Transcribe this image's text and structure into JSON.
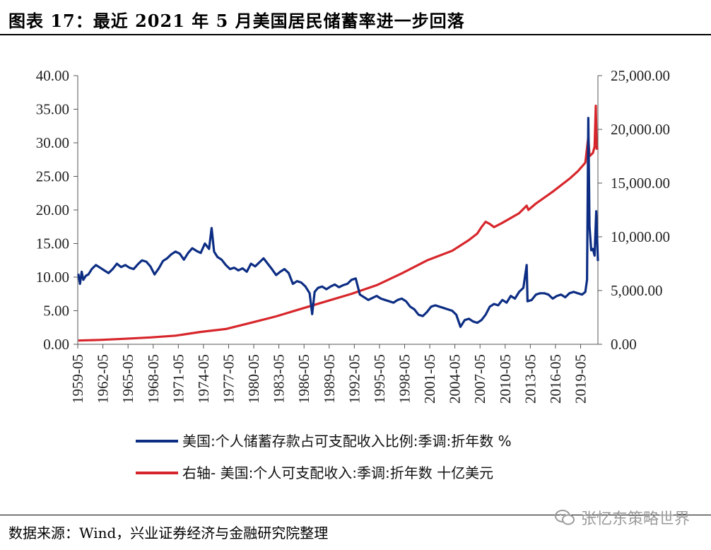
{
  "title": "图表 17：最近 2021 年 5 月美国居民储蓄率进一步回落",
  "source": "数据来源：Wind，兴业证券经济与金融研究院整理",
  "watermark": "张忆东策略世界",
  "chart_data": {
    "type": "line",
    "title": "图表 17：最近 2021 年 5 月美国居民储蓄率进一步回落",
    "x_tick_labels": [
      "1959-05",
      "1962-05",
      "1965-05",
      "1968-05",
      "1971-05",
      "1974-05",
      "1977-05",
      "1980-05",
      "1983-05",
      "1986-05",
      "1989-05",
      "1992-05",
      "1995-05",
      "1998-05",
      "2001-05",
      "2004-05",
      "2007-05",
      "2010-05",
      "2013-05",
      "2016-05",
      "2019-05"
    ],
    "x_range": [
      1959.33,
      2021.4
    ],
    "left_axis": {
      "ylim": [
        0,
        40
      ],
      "ticks": [
        "0.00",
        "5.00",
        "10.00",
        "15.00",
        "20.00",
        "25.00",
        "30.00",
        "35.00",
        "40.00"
      ]
    },
    "right_axis": {
      "ylim": [
        0,
        25000
      ],
      "ticks": [
        "0.00",
        "5,000.00",
        "10,000.00",
        "15,000.00",
        "20,000.00",
        "25,000.00"
      ]
    },
    "series": [
      {
        "name": "美国:个人储蓄存款占可支配收入比例:季调:折年数 %",
        "axis": "left",
        "color": "#0c2d83",
        "x": [
          1959.4,
          1959.6,
          1959.8,
          1960.0,
          1960.3,
          1960.6,
          1961.0,
          1961.5,
          1962.0,
          1962.5,
          1963.0,
          1963.5,
          1964.0,
          1964.5,
          1965.0,
          1965.5,
          1966.0,
          1966.5,
          1967.0,
          1967.5,
          1968.0,
          1968.5,
          1969.0,
          1969.5,
          1970.0,
          1970.5,
          1971.0,
          1971.5,
          1972.0,
          1972.5,
          1973.0,
          1973.5,
          1974.0,
          1974.5,
          1975.0,
          1975.3,
          1975.6,
          1976.0,
          1976.5,
          1977.0,
          1977.5,
          1978.0,
          1978.5,
          1979.0,
          1979.5,
          1980.0,
          1980.5,
          1981.0,
          1981.5,
          1982.0,
          1982.5,
          1983.0,
          1983.5,
          1984.0,
          1984.5,
          1985.0,
          1985.5,
          1986.0,
          1986.5,
          1987.0,
          1987.3,
          1987.6,
          1988.0,
          1988.5,
          1989.0,
          1989.5,
          1990.0,
          1990.5,
          1991.0,
          1991.5,
          1992.0,
          1992.5,
          1993.0,
          1993.5,
          1994.0,
          1994.5,
          1995.0,
          1995.5,
          1996.0,
          1996.5,
          1997.0,
          1997.5,
          1998.0,
          1998.5,
          1999.0,
          1999.5,
          2000.0,
          2000.5,
          2001.0,
          2001.5,
          2002.0,
          2002.5,
          2003.0,
          2003.5,
          2004.0,
          2004.5,
          2005.0,
          2005.5,
          2006.0,
          2006.5,
          2007.0,
          2007.5,
          2008.0,
          2008.5,
          2009.0,
          2009.5,
          2010.0,
          2010.5,
          2011.0,
          2011.5,
          2012.0,
          2012.5,
          2012.9,
          2013.0,
          2013.5,
          2014.0,
          2014.5,
          2015.0,
          2015.5,
          2016.0,
          2016.5,
          2017.0,
          2017.5,
          2018.0,
          2018.5,
          2019.0,
          2019.5,
          2019.9,
          2020.1,
          2020.25,
          2020.4,
          2020.6,
          2020.8,
          2021.0,
          2021.2,
          2021.4
        ],
        "values": [
          10.5,
          9.0,
          10.8,
          9.6,
          10.2,
          10.4,
          11.2,
          11.8,
          11.4,
          11.0,
          10.6,
          11.2,
          12.0,
          11.5,
          11.8,
          11.4,
          11.2,
          11.9,
          12.5,
          12.3,
          11.6,
          10.4,
          11.3,
          12.4,
          12.8,
          13.4,
          13.8,
          13.5,
          12.6,
          13.6,
          14.3,
          13.9,
          13.6,
          15.0,
          14.2,
          17.3,
          13.8,
          13.0,
          12.6,
          11.8,
          11.2,
          11.4,
          11.0,
          11.3,
          10.8,
          12.0,
          11.6,
          12.2,
          12.8,
          12.0,
          11.2,
          10.3,
          10.8,
          11.2,
          10.6,
          9.0,
          9.4,
          9.2,
          8.6,
          7.6,
          4.5,
          7.8,
          8.4,
          8.6,
          8.2,
          8.6,
          8.9,
          8.5,
          8.8,
          9.0,
          9.6,
          9.8,
          7.4,
          7.0,
          6.6,
          6.9,
          7.2,
          6.8,
          6.6,
          6.4,
          6.2,
          6.6,
          6.8,
          6.4,
          5.6,
          5.2,
          4.4,
          4.2,
          4.8,
          5.6,
          5.8,
          5.6,
          5.4,
          5.2,
          5.0,
          4.4,
          2.6,
          3.6,
          3.8,
          3.4,
          3.2,
          3.6,
          4.4,
          5.6,
          6.0,
          5.8,
          6.6,
          6.2,
          7.2,
          6.8,
          7.8,
          8.4,
          11.8,
          6.4,
          6.6,
          7.4,
          7.6,
          7.6,
          7.4,
          6.8,
          7.2,
          7.4,
          7.0,
          7.6,
          7.8,
          7.6,
          7.4,
          7.8,
          9.6,
          33.7,
          17.6,
          14.0,
          14.2,
          13.2,
          19.8,
          12.4
        ]
      },
      {
        "name": "右轴- 美国:个人可支配收入:季调:折年数 十亿美元",
        "axis": "right",
        "color": "#d7262b",
        "x": [
          1959.4,
          1962.0,
          1965.0,
          1968.0,
          1971.0,
          1974.0,
          1977.0,
          1980.0,
          1983.0,
          1986.0,
          1989.0,
          1992.0,
          1995.0,
          1998.0,
          2001.0,
          2004.0,
          2006.0,
          2007.0,
          2007.5,
          2008.0,
          2008.5,
          2009.0,
          2010.0,
          2012.0,
          2012.9,
          2013.1,
          2014.0,
          2016.0,
          2018.0,
          2019.0,
          2019.9,
          2020.25,
          2020.4,
          2020.8,
          2021.0,
          2021.15,
          2021.25,
          2021.4
        ],
        "values": [
          350,
          410,
          510,
          640,
          800,
          1150,
          1420,
          2000,
          2600,
          3300,
          4000,
          4700,
          5500,
          6600,
          7800,
          8700,
          9700,
          10300,
          10900,
          11400,
          11200,
          10900,
          11300,
          12200,
          12900,
          12500,
          13100,
          14200,
          15400,
          16100,
          16900,
          19300,
          17500,
          17800,
          18400,
          22200,
          18200,
          18300
        ]
      }
    ],
    "legend_position": "bottom-center"
  }
}
